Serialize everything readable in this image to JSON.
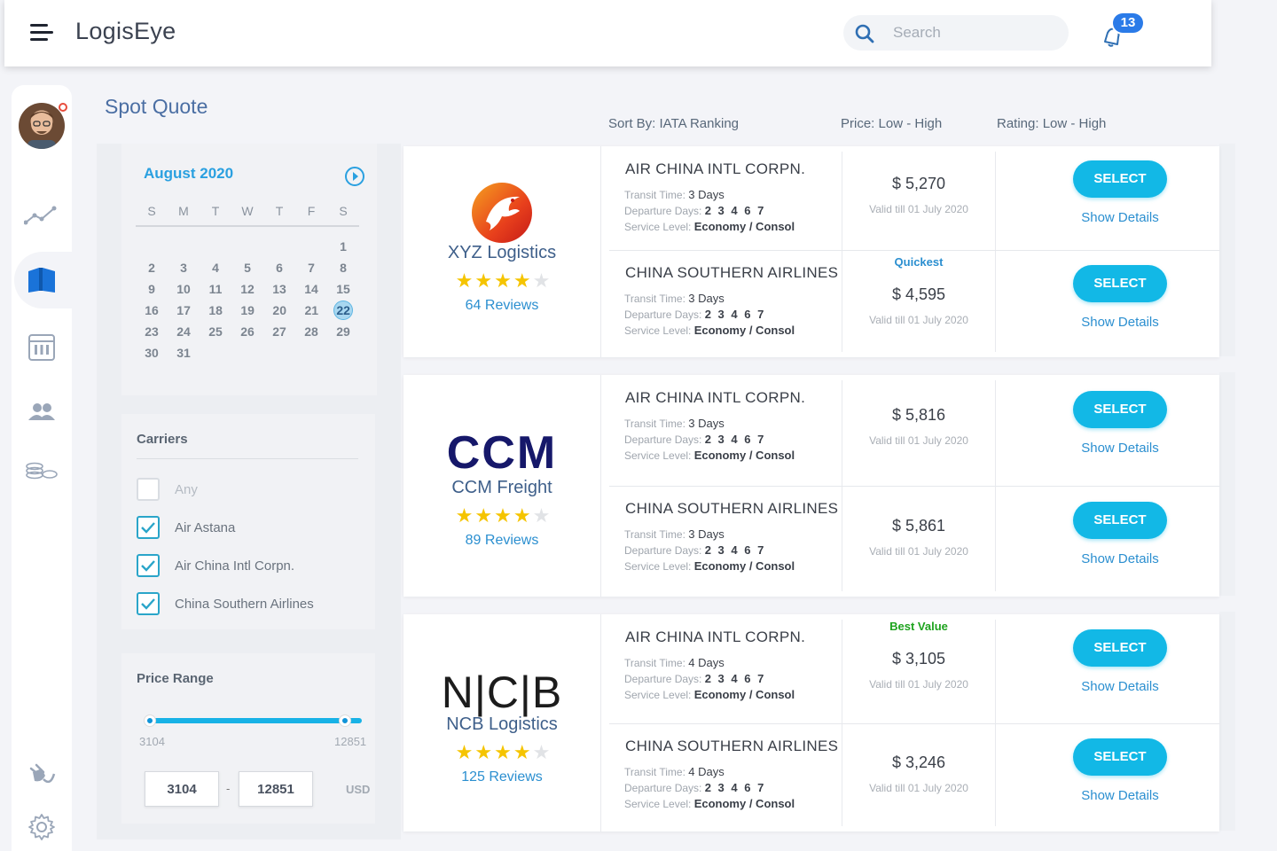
{
  "header": {
    "logo": "LogisEye",
    "search_placeholder": "Search",
    "notifications_count": "13"
  },
  "page": {
    "title": "Spot Quote"
  },
  "sort": {
    "label1": "Sort By: IATA Ranking",
    "label2": "Price: Low - High",
    "label3": "Rating: Low - High"
  },
  "calendar": {
    "month": "August 2020",
    "weekdays": [
      "S",
      "M",
      "T",
      "W",
      "T",
      "F",
      "S"
    ],
    "weeks": [
      [
        "",
        "",
        "",
        "",
        "",
        "",
        "1"
      ],
      [
        "2",
        "3",
        "4",
        "5",
        "6",
        "7",
        "8"
      ],
      [
        "9",
        "10",
        "11",
        "12",
        "13",
        "14",
        "15"
      ],
      [
        "16",
        "17",
        "18",
        "19",
        "20",
        "21",
        "22"
      ],
      [
        "23",
        "24",
        "25",
        "26",
        "27",
        "28",
        "29"
      ],
      [
        "30",
        "31",
        "",
        "",
        "",
        "",
        ""
      ]
    ],
    "selected": "22"
  },
  "carriers": {
    "title": "Carriers",
    "items": [
      {
        "label": "Any",
        "checked": false
      },
      {
        "label": "Air Astana",
        "checked": true
      },
      {
        "label": "Air China Intl Corpn.",
        "checked": true
      },
      {
        "label": "China Southern Airlines",
        "checked": true
      }
    ]
  },
  "price_range": {
    "title": "Price Range",
    "min_label": "3104",
    "max_label": "12851",
    "min_value": "3104",
    "max_value": "12851",
    "unit": "USD"
  },
  "labels": {
    "transit": "Transit Time:",
    "departure": "Departure Days:",
    "service": "Service Level:",
    "select": "SELECT",
    "show_details": "Show Details"
  },
  "vendors": [
    {
      "name": "XYZ Logistics",
      "rating": 4,
      "reviews": "64 Reviews",
      "quotes": [
        {
          "airline": "AIR CHINA INTL CORPN.",
          "transit": "3 Days",
          "days": "2 3 4 6 7",
          "service": "Economy / Consol",
          "tag": "",
          "price": "$ 5,270",
          "valid": "Valid till 01 July 2020"
        },
        {
          "airline": "CHINA SOUTHERN AIRLINES",
          "transit": "3 Days",
          "days": "2 3 4 6 7",
          "service": "Economy / Consol",
          "tag": "Quickest",
          "price": "$ 4,595",
          "valid": "Valid till 01 July 2020"
        }
      ]
    },
    {
      "name": "CCM Freight",
      "logo_text": "CCM",
      "rating": 4,
      "reviews": "89 Reviews",
      "quotes": [
        {
          "airline": "AIR CHINA INTL CORPN.",
          "transit": "3 Days",
          "days": "2 3 4 6 7",
          "service": "Economy / Consol",
          "tag": "",
          "price": "$ 5,816",
          "valid": "Valid till 01 July 2020"
        },
        {
          "airline": "CHINA SOUTHERN AIRLINES",
          "transit": "3 Days",
          "days": "2 3 4 6 7",
          "service": "Economy / Consol",
          "tag": "",
          "price": "$ 5,861",
          "valid": "Valid till 01 July 2020"
        }
      ]
    },
    {
      "name": "NCB Logistics",
      "logo_text": "N|C|B",
      "rating": 4,
      "reviews": "125 Reviews",
      "quotes": [
        {
          "airline": "AIR CHINA INTL CORPN.",
          "transit": "4 Days",
          "days": "2 3 4 6 7",
          "service": "Economy / Consol",
          "tag": "Best Value",
          "price": "$ 3,105",
          "valid": "Valid till 01 July 2020"
        },
        {
          "airline": "CHINA SOUTHERN AIRLINES",
          "transit": "4 Days",
          "days": "2 3 4 6 7",
          "service": "Economy / Consol",
          "tag": "",
          "price": "$ 3,246",
          "valid": "Valid till 01 July 2020"
        }
      ]
    }
  ],
  "icons": {
    "menu": "hamburger-icon",
    "search": "search-icon",
    "notifications": "bell-icon",
    "nav": [
      "chart-line-icon",
      "book-icon",
      "calendar-grid-icon",
      "users-icon",
      "coins-icon",
      "plug-icon",
      "gear-icon"
    ]
  },
  "colors": {
    "accent": "#12b8e6",
    "link": "#2b8fd0",
    "title": "#4a6ea3",
    "quickest": "#2b8fd0",
    "best_value": "#1ea31e",
    "star": "#f5c400"
  }
}
